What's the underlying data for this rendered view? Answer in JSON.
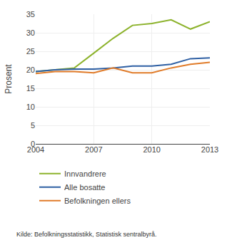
{
  "chart_data": {
    "type": "line",
    "ylabel": "Prosent",
    "x": [
      2004,
      2005,
      2006,
      2007,
      2008,
      2009,
      2010,
      2011,
      2012,
      2013
    ],
    "series": [
      {
        "name": "Innvandrere",
        "color": "#8cb22b",
        "values": [
          19.5,
          20.0,
          20.5,
          24.5,
          28.5,
          32.0,
          32.5,
          33.5,
          31.0,
          33.0
        ]
      },
      {
        "name": "Alle bosatte",
        "color": "#2e5fa3",
        "values": [
          19.5,
          20.0,
          20.2,
          20.2,
          20.5,
          21.0,
          21.0,
          21.5,
          23.0,
          23.2
        ]
      },
      {
        "name": "Befolkningen ellers",
        "color": "#e07b29",
        "values": [
          19.0,
          19.5,
          19.5,
          19.2,
          20.5,
          19.2,
          19.2,
          20.5,
          21.5,
          22.0
        ]
      }
    ],
    "xlim": [
      2004,
      2013
    ],
    "xticks": [
      2004,
      2007,
      2010,
      2013
    ],
    "ylim": [
      0,
      35
    ],
    "yticks": [
      0,
      5,
      10,
      15,
      20,
      25,
      30,
      35
    ],
    "grid": true,
    "legend": "bottom",
    "annotations": [
      "Kilde: Befolkningsstatistikk, Statistisk sentralbyrå."
    ]
  }
}
